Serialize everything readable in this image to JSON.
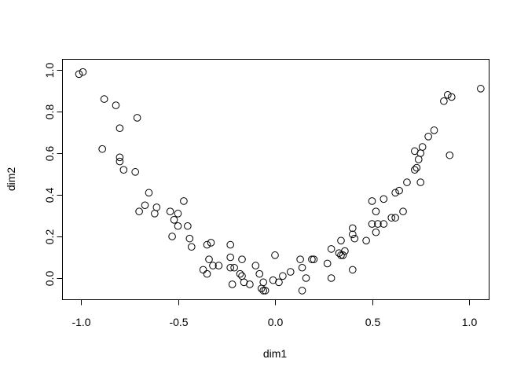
{
  "chart_data": {
    "type": "scatter",
    "title": "",
    "xlabel": "dim1",
    "ylabel": "dim2",
    "xlim": [
      -1.1,
      1.1
    ],
    "ylim": [
      -0.1,
      1.05
    ],
    "grid": false,
    "x_ticks": [
      "-1.0",
      "-0.5",
      "0.0",
      "0.5",
      "1.0"
    ],
    "y_ticks": [
      "0.0",
      "0.2",
      "0.4",
      "0.6",
      "0.8",
      "1.0"
    ],
    "marker": "open-circle",
    "color": "#000000",
    "points": [
      [
        -1.01,
        0.98
      ],
      [
        -0.99,
        0.99
      ],
      [
        -0.88,
        0.86
      ],
      [
        -0.82,
        0.83
      ],
      [
        -0.71,
        0.77
      ],
      [
        -0.8,
        0.72
      ],
      [
        -0.89,
        0.62
      ],
      [
        -0.8,
        0.58
      ],
      [
        -0.8,
        0.56
      ],
      [
        -0.78,
        0.52
      ],
      [
        -0.72,
        0.51
      ],
      [
        -0.65,
        0.41
      ],
      [
        -0.47,
        0.37
      ],
      [
        -0.67,
        0.35
      ],
      [
        -0.7,
        0.32
      ],
      [
        -0.61,
        0.34
      ],
      [
        -0.62,
        0.31
      ],
      [
        -0.54,
        0.32
      ],
      [
        -0.5,
        0.31
      ],
      [
        -0.52,
        0.28
      ],
      [
        -0.5,
        0.25
      ],
      [
        -0.45,
        0.25
      ],
      [
        -0.53,
        0.2
      ],
      [
        -0.44,
        0.19
      ],
      [
        -0.43,
        0.15
      ],
      [
        -0.35,
        0.16
      ],
      [
        -0.33,
        0.17
      ],
      [
        -0.34,
        0.09
      ],
      [
        -0.32,
        0.06
      ],
      [
        -0.29,
        0.06
      ],
      [
        -0.37,
        0.04
      ],
      [
        -0.35,
        0.02
      ],
      [
        -0.23,
        0.16
      ],
      [
        -0.23,
        0.1
      ],
      [
        -0.17,
        0.09
      ],
      [
        -0.23,
        0.05
      ],
      [
        -0.21,
        0.05
      ],
      [
        -0.18,
        0.02
      ],
      [
        -0.17,
        0.01
      ],
      [
        -0.16,
        -0.02
      ],
      [
        -0.22,
        -0.03
      ],
      [
        -0.13,
        -0.03
      ],
      [
        -0.1,
        0.06
      ],
      [
        -0.08,
        0.02
      ],
      [
        -0.06,
        -0.02
      ],
      [
        -0.07,
        -0.05
      ],
      [
        -0.06,
        -0.06
      ],
      [
        -0.05,
        -0.06
      ],
      [
        0.0,
        0.11
      ],
      [
        -0.01,
        -0.01
      ],
      [
        0.02,
        -0.02
      ],
      [
        0.04,
        0.01
      ],
      [
        0.08,
        0.03
      ],
      [
        0.13,
        0.09
      ],
      [
        0.14,
        0.05
      ],
      [
        0.16,
        0.0
      ],
      [
        0.14,
        -0.06
      ],
      [
        0.19,
        0.09
      ],
      [
        0.2,
        0.09
      ],
      [
        0.27,
        0.07
      ],
      [
        0.29,
        0.0
      ],
      [
        0.29,
        0.14
      ],
      [
        0.33,
        0.12
      ],
      [
        0.34,
        0.11
      ],
      [
        0.35,
        0.11
      ],
      [
        0.36,
        0.13
      ],
      [
        0.34,
        0.18
      ],
      [
        0.4,
        0.04
      ],
      [
        0.4,
        0.24
      ],
      [
        0.4,
        0.21
      ],
      [
        0.41,
        0.19
      ],
      [
        0.47,
        0.18
      ],
      [
        0.5,
        0.37
      ],
      [
        0.56,
        0.38
      ],
      [
        0.52,
        0.32
      ],
      [
        0.5,
        0.26
      ],
      [
        0.53,
        0.26
      ],
      [
        0.56,
        0.26
      ],
      [
        0.52,
        0.22
      ],
      [
        0.6,
        0.29
      ],
      [
        0.62,
        0.29
      ],
      [
        0.66,
        0.32
      ],
      [
        0.62,
        0.41
      ],
      [
        0.64,
        0.42
      ],
      [
        0.68,
        0.46
      ],
      [
        0.75,
        0.46
      ],
      [
        0.72,
        0.52
      ],
      [
        0.73,
        0.53
      ],
      [
        0.74,
        0.57
      ],
      [
        0.72,
        0.61
      ],
      [
        0.75,
        0.6
      ],
      [
        0.76,
        0.63
      ],
      [
        0.79,
        0.68
      ],
      [
        0.82,
        0.71
      ],
      [
        0.87,
        0.85
      ],
      [
        0.89,
        0.88
      ],
      [
        0.91,
        0.87
      ],
      [
        0.9,
        0.59
      ],
      [
        1.06,
        0.91
      ]
    ]
  }
}
